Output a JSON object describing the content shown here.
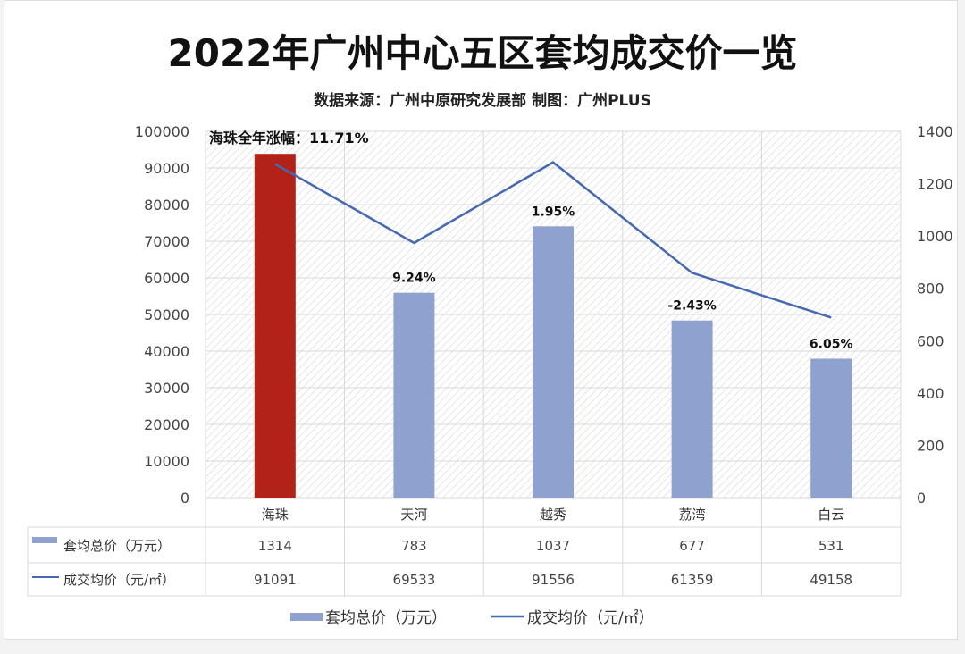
{
  "chart_data": {
    "type": "bar",
    "title": "2022年广州中心五区套均成交价一览",
    "subtitle": "数据来源：广州中原研究发展部 制图：广州PLUS",
    "categories": [
      "海珠",
      "天河",
      "越秀",
      "荔湾",
      "白云"
    ],
    "series": [
      {
        "name": "套均总价（万元）",
        "type": "bar",
        "axis": "right",
        "values": [
          1314,
          783,
          1037,
          677,
          531
        ],
        "color": "#8fa2cf",
        "highlight_color": "#b22218"
      },
      {
        "name": "成交均价（元/㎡）",
        "type": "line",
        "axis": "left",
        "values": [
          91091,
          69533,
          91556,
          61359,
          49158
        ],
        "color": "#4668b0"
      }
    ],
    "bar_labels": [
      "海珠全年涨幅：11.71%",
      "9.24%",
      "1.95%",
      "-2.43%",
      "6.05%"
    ],
    "left_axis": {
      "range": [
        0,
        100000
      ],
      "ticks": [
        "0",
        "10000",
        "20000",
        "30000",
        "40000",
        "50000",
        "60000",
        "70000",
        "80000",
        "90000",
        "100000"
      ]
    },
    "right_axis": {
      "range": [
        0,
        1400
      ],
      "ticks": [
        "0",
        "200",
        "400",
        "600",
        "800",
        "1000",
        "1200",
        "1400"
      ]
    },
    "grid": true,
    "legend": "bottom"
  }
}
